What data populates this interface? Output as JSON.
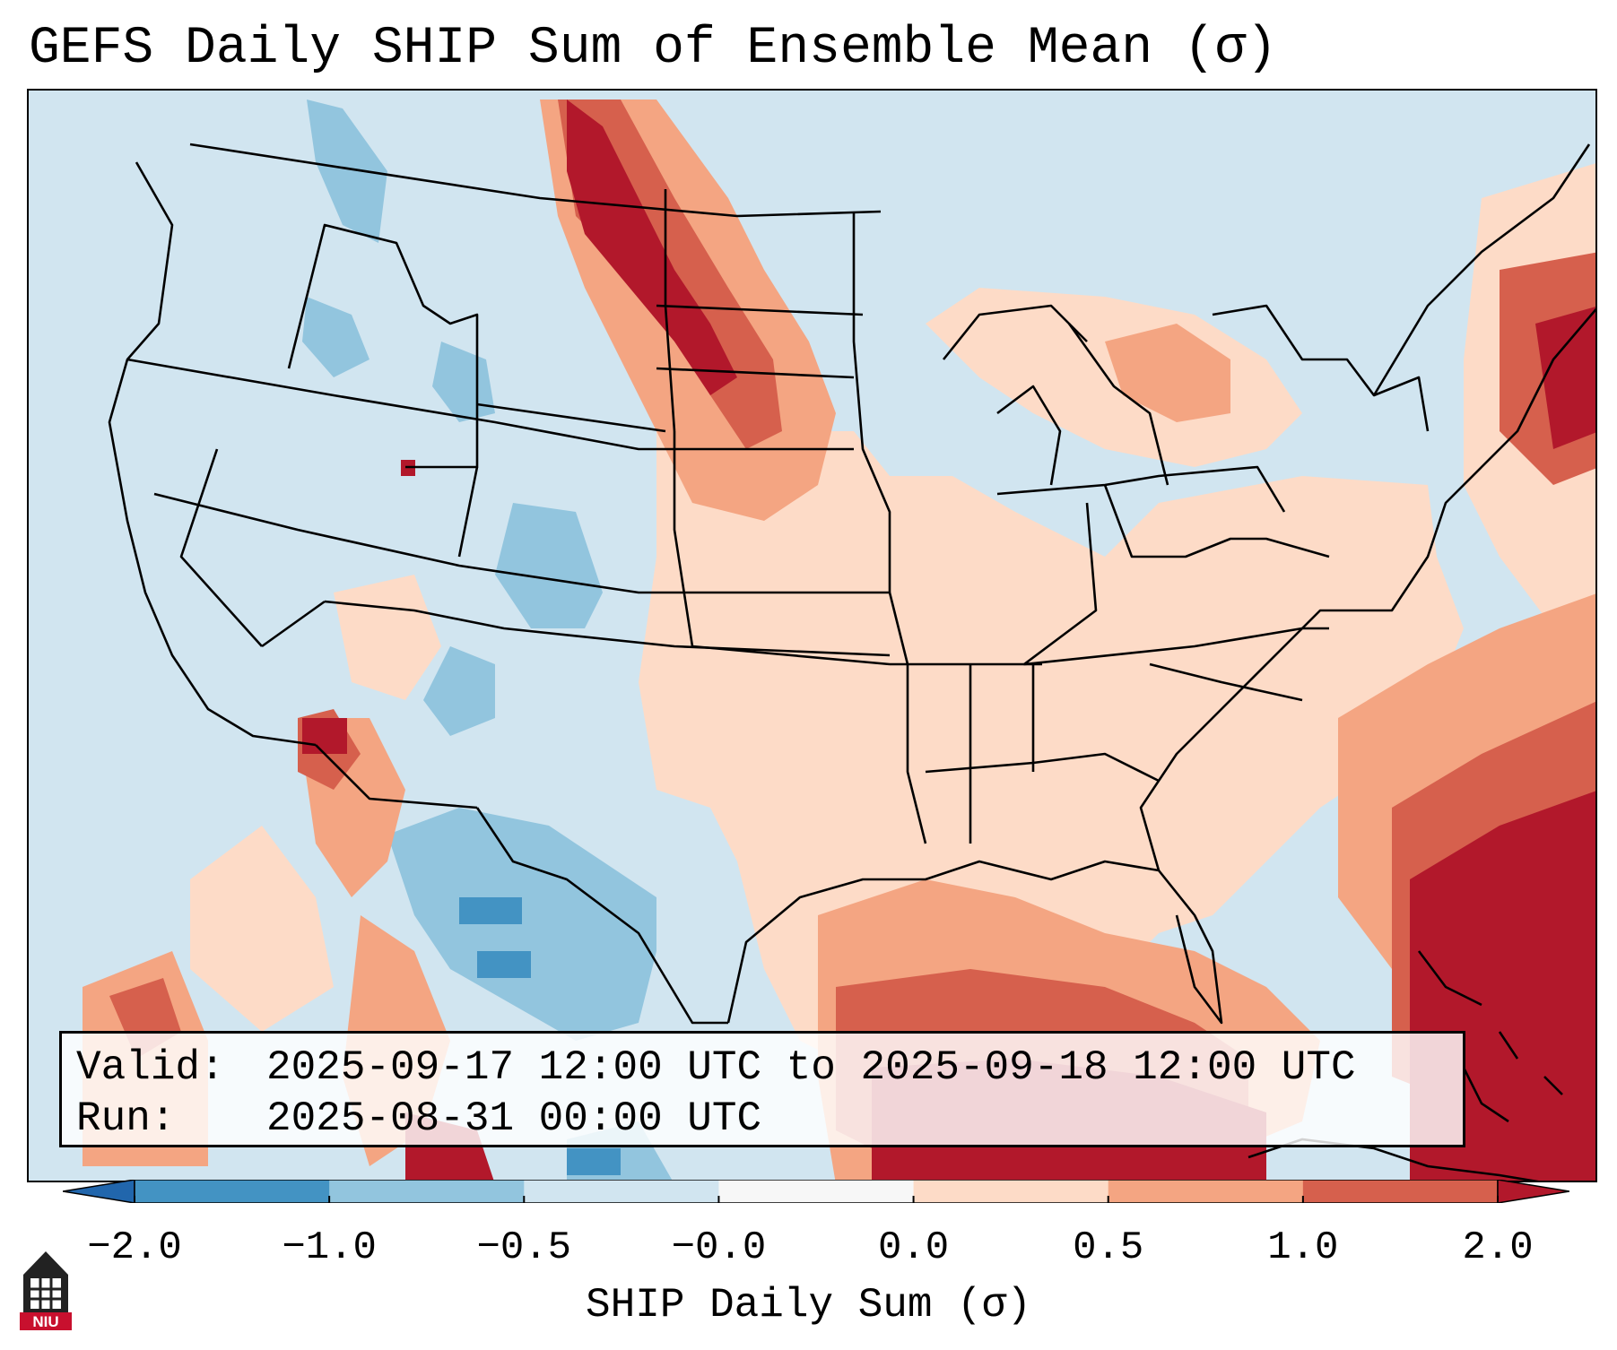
{
  "figure": {
    "title": "GEFS Daily SHIP Sum of Ensemble Mean (σ)",
    "valid_label": "Valid:",
    "valid_value": "2025-09-17 12:00 UTC to 2025-09-18 12:00 UTC",
    "run_label": "Run:",
    "run_value": "2025-08-31 00:00 UTC"
  },
  "colorbar": {
    "label": "SHIP Daily Sum (σ)",
    "ticks": [
      "−2.0",
      "−1.0",
      "−0.5",
      "−0.0",
      "0.0",
      "0.5",
      "1.0",
      "2.0"
    ],
    "bins": [
      {
        "from": -2.0,
        "to": -1.0,
        "color": "#4393c3"
      },
      {
        "from": -1.0,
        "to": -0.5,
        "color": "#92c5de"
      },
      {
        "from": -0.5,
        "to": -0.0,
        "color": "#d1e5f0"
      },
      {
        "from": -0.0,
        "to": 0.0,
        "color": "#f7f7f7"
      },
      {
        "from": 0.0,
        "to": 0.5,
        "color": "#fddbc7"
      },
      {
        "from": 0.5,
        "to": 1.0,
        "color": "#f4a582"
      },
      {
        "from": 1.0,
        "to": 2.0,
        "color": "#d6604d"
      }
    ],
    "extend_low_color": "#2166ac",
    "extend_high_color": "#b2182b"
  },
  "logo": {
    "text": "NIU",
    "icon": "niu-tower-icon"
  }
}
